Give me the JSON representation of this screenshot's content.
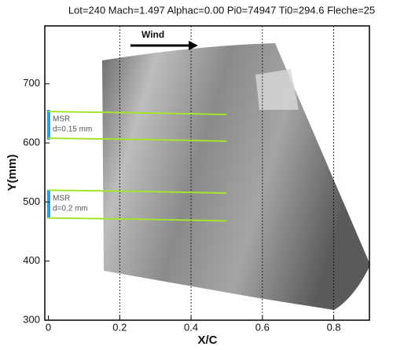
{
  "chart_data": {
    "type": "line",
    "title": "Lot=240 Mach=1.497 Alphac=0.00 Pi0=74947 Ti0=294.6 Fleche=25",
    "x_label": "X/C",
    "y_label": "Y(mm)",
    "annotations": [
      "Wind",
      "MSR",
      "d=0.15 mm",
      "MSR",
      "d=0.2 mm"
    ],
    "series": [
      {
        "color": "#a6e22e",
        "x": [
          0,
          0.25,
          0.5
        ],
        "values": [
          653,
          651,
          648
        ]
      },
      {
        "color": "#a6e22e",
        "x": [
          0,
          0.25,
          0.5
        ],
        "values": [
          608,
          606,
          603
        ]
      },
      {
        "color": "#a6e22e",
        "x": [
          0,
          0.25,
          0.5
        ],
        "values": [
          520,
          518,
          515
        ]
      },
      {
        "color": "#a6e22e",
        "x": [
          0,
          0.25,
          0.5
        ],
        "values": [
          473,
          471,
          468
        ]
      }
    ],
    "xlim": [
      -0.01,
      0.9
    ],
    "ylim": [
      300,
      798
    ],
    "xticks": [
      0,
      0.2,
      0.4,
      0.6,
      0.8
    ],
    "yticks": [
      300,
      400,
      500,
      600,
      700
    ],
    "grid": true
  }
}
